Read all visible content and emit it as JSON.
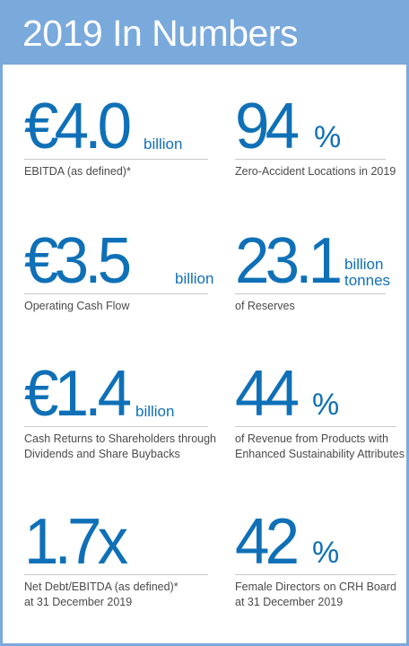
{
  "title": "2019 In Numbers",
  "colors": {
    "accent_blue": "#0f70b7",
    "header_blue": "#7aa9dc",
    "label_gray": "#4a4a4a",
    "rule_gray": "#c9c9c9"
  },
  "stats": [
    {
      "value": "€4.0",
      "unit": "billion",
      "label": [
        "EBITDA (as defined)*"
      ]
    },
    {
      "value": "94",
      "unit": "%",
      "label": [
        "Zero-Accident Locations in 2019"
      ]
    },
    {
      "value": "€3.5",
      "unit": "billion",
      "label": [
        "Operating Cash Flow"
      ]
    },
    {
      "value": "23.1",
      "unit": [
        "billion",
        "tonnes"
      ],
      "label": [
        "of Reserves"
      ]
    },
    {
      "value": "€1.4",
      "unit": "billion",
      "label": [
        "Cash Returns to Shareholders through",
        "Dividends and Share Buybacks"
      ]
    },
    {
      "value": "44",
      "unit": "%",
      "label": [
        "of Revenue from Products with",
        "Enhanced Sustainability Attributes"
      ]
    },
    {
      "value": "1.7x",
      "unit": "",
      "label": [
        "Net Debt/EBITDA (as defined)*",
        "at 31 December 2019"
      ]
    },
    {
      "value": "42",
      "unit": "%",
      "label": [
        "Female Directors on CRH Board",
        "at 31 December 2019"
      ]
    }
  ]
}
